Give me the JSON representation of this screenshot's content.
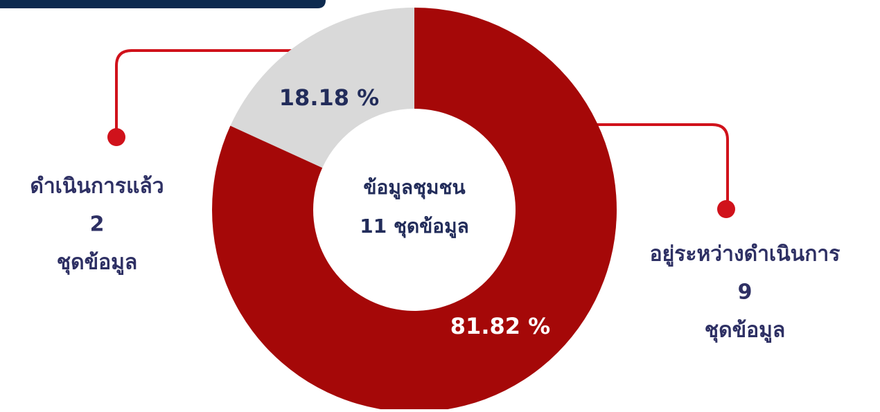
{
  "chart_data": {
    "type": "donut",
    "categories": [
      "ดำเนินการแล้ว",
      "อยู่ระหว่างดำเนินการ"
    ],
    "values": [
      18.18,
      81.82
    ],
    "value_labels": [
      "18.18 %",
      "81.82 %"
    ],
    "counts": [
      2,
      9
    ],
    "count_unit": "ชุดข้อมูล",
    "colors": [
      "#d9d9d9",
      "#a50808"
    ],
    "center_title": "ข้อมูลชุมชน",
    "center_subtitle": "11 ชุดข้อมูล"
  }
}
